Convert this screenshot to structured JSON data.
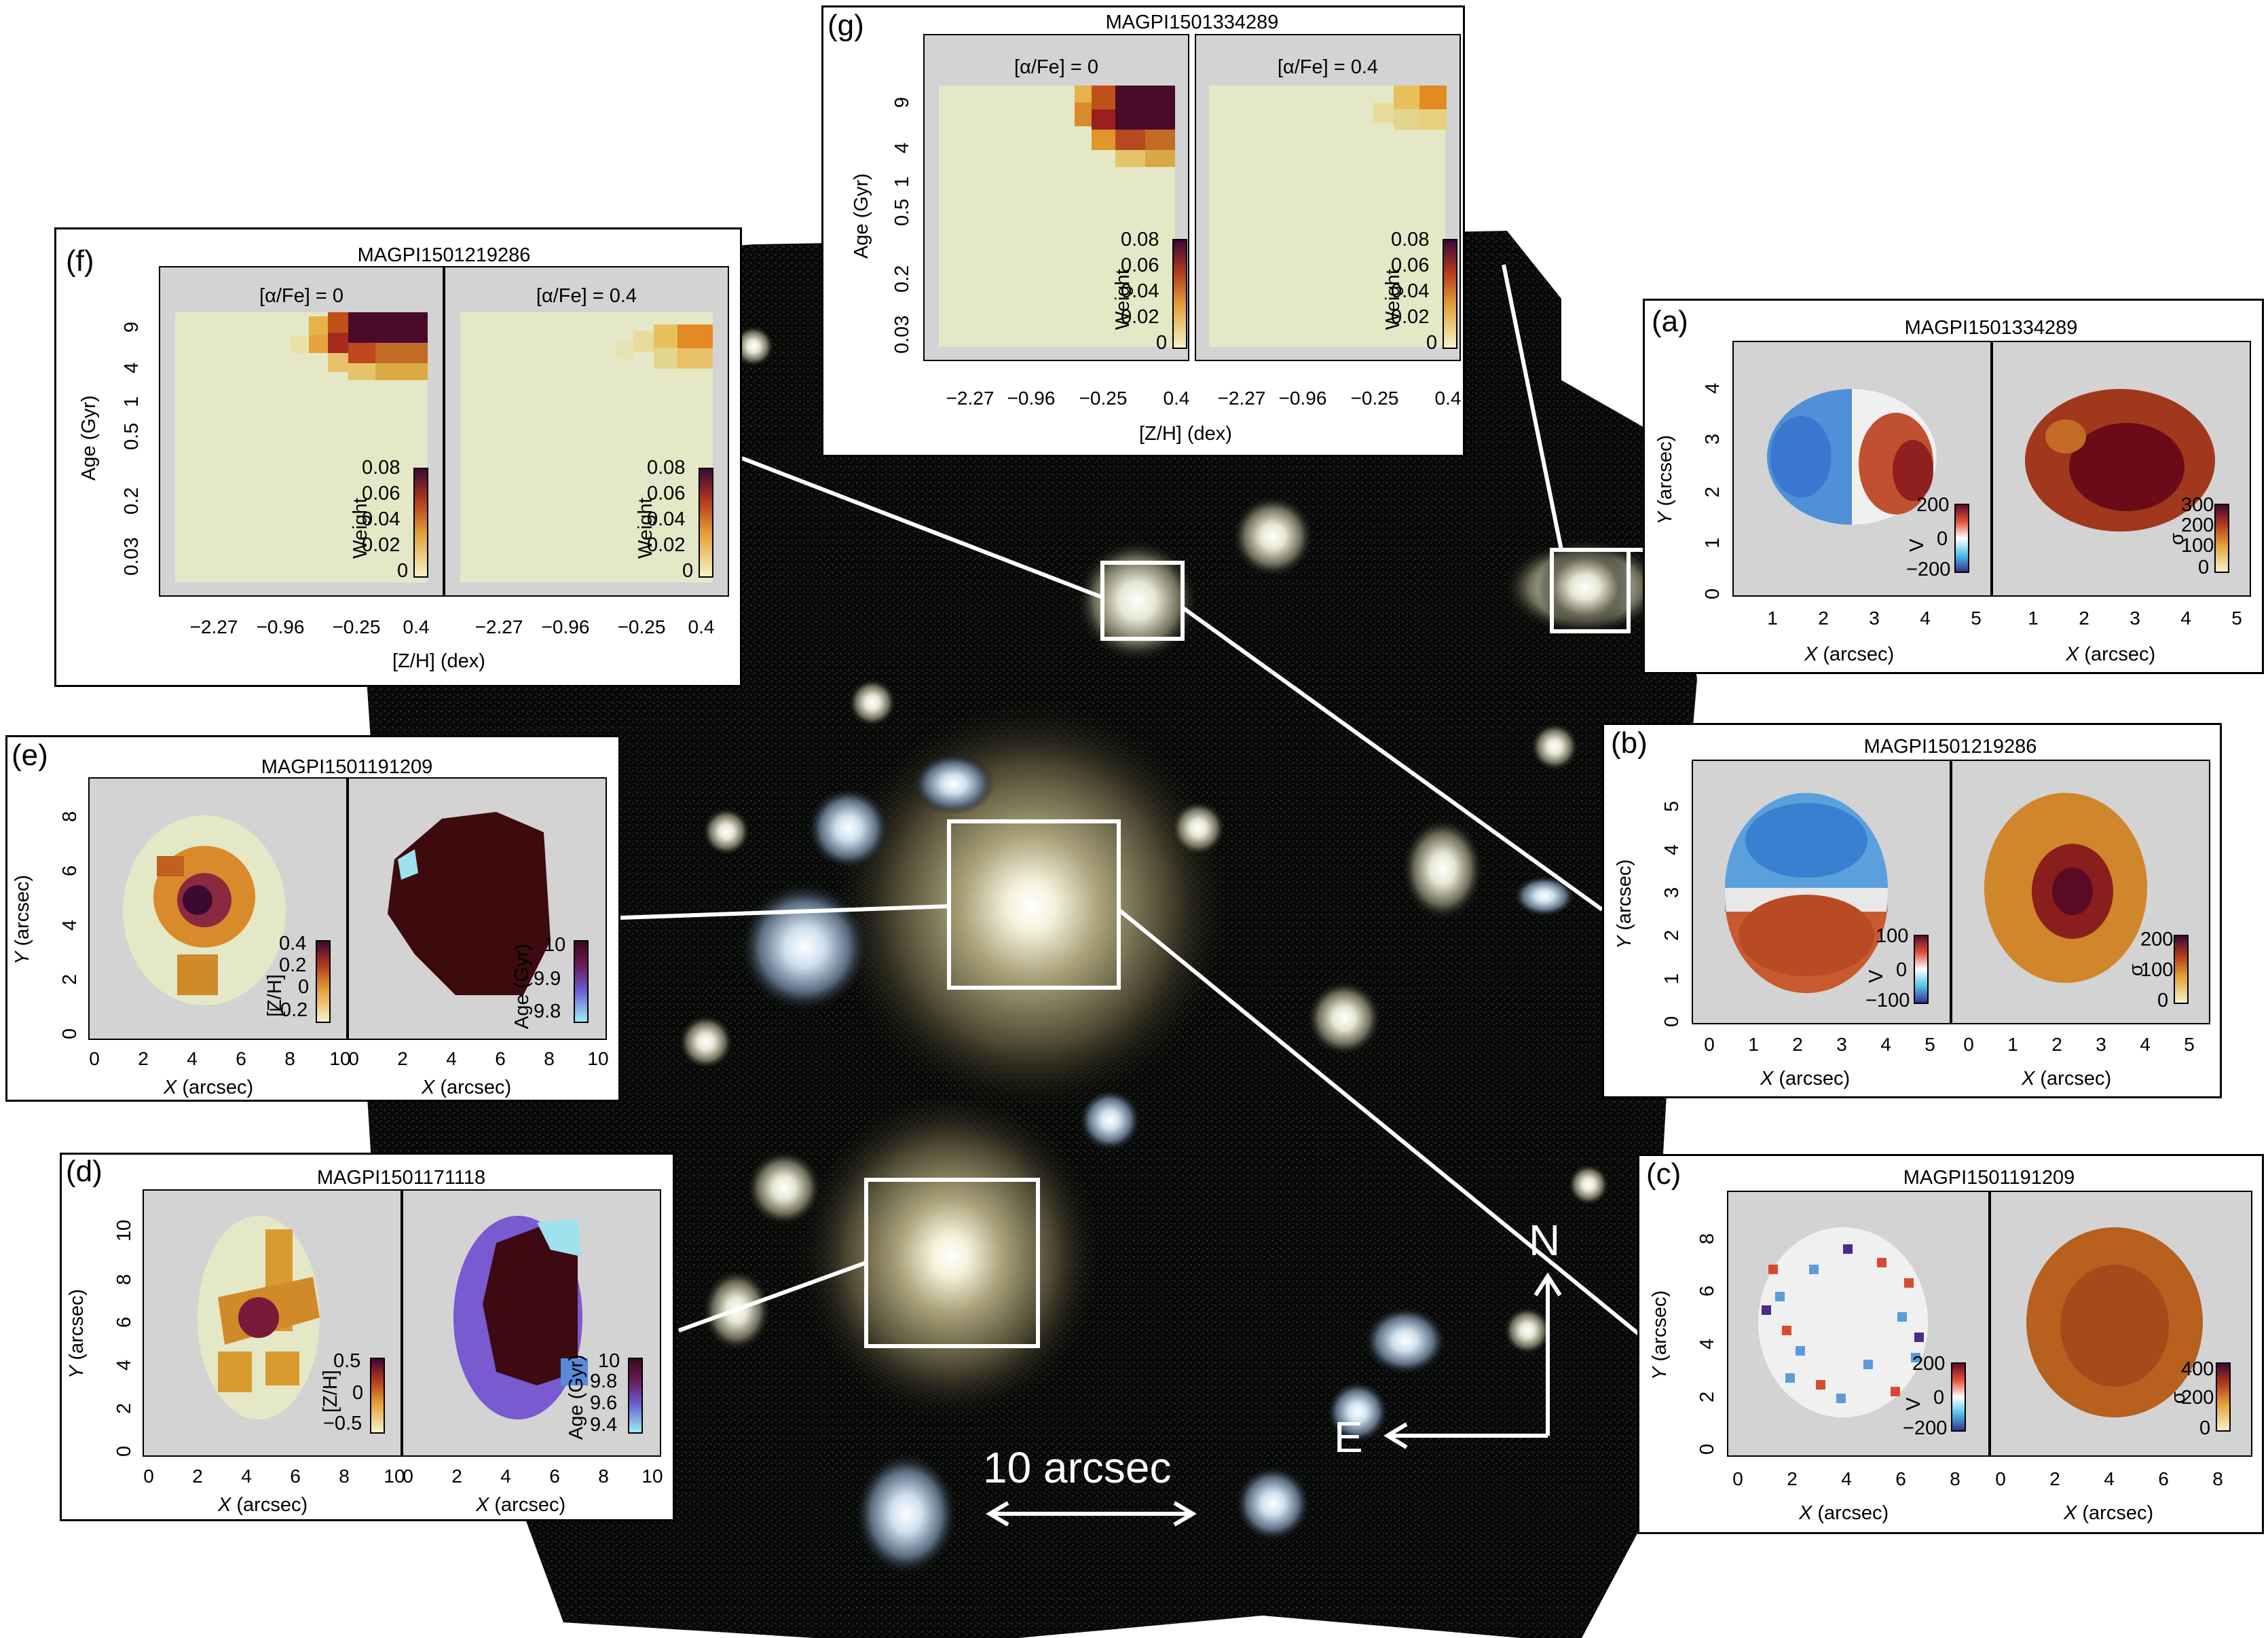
{
  "panels": {
    "a": {
      "letter": "(a)",
      "title": "MAGPI1501334289",
      "xlabel_var": "X",
      "xlabel_unit": " (arcsec)",
      "ylabel_var": "Y",
      "ylabel_unit": " (arcsec)",
      "xticks": [
        "1",
        "2",
        "3",
        "4",
        "5"
      ],
      "yticks": [
        "0",
        "1",
        "2",
        "3",
        "4"
      ],
      "cbar_left": {
        "label": "V",
        "ticks": [
          "200",
          "0",
          "−200"
        ]
      },
      "cbar_right": {
        "label": "σ",
        "ticks": [
          "300",
          "200",
          "100",
          "0"
        ]
      }
    },
    "b": {
      "letter": "(b)",
      "title": "MAGPI1501219286",
      "xlabel_var": "X",
      "xlabel_unit": " (arcsec)",
      "ylabel_var": "Y",
      "ylabel_unit": " (arcsec)",
      "xticks": [
        "0",
        "1",
        "2",
        "3",
        "4",
        "5"
      ],
      "yticks": [
        "0",
        "1",
        "2",
        "3",
        "4",
        "5"
      ],
      "cbar_left": {
        "label": "V",
        "ticks": [
          "100",
          "0",
          "−100"
        ]
      },
      "cbar_right": {
        "label": "σ",
        "ticks": [
          "200",
          "100",
          "0"
        ]
      }
    },
    "c": {
      "letter": "(c)",
      "title": "MAGPI1501191209",
      "xlabel_var": "X",
      "xlabel_unit": " (arcsec)",
      "ylabel_var": "Y",
      "ylabel_unit": " (arcsec)",
      "xticks": [
        "0",
        "2",
        "4",
        "6",
        "8"
      ],
      "yticks": [
        "0",
        "2",
        "4",
        "6",
        "8"
      ],
      "cbar_left": {
        "label": "V",
        "ticks": [
          "200",
          "0",
          "−200"
        ]
      },
      "cbar_right": {
        "label": "σ",
        "ticks": [
          "400",
          "200",
          "0"
        ]
      }
    },
    "d": {
      "letter": "(d)",
      "title": "MAGPI1501171118",
      "xlabel_var": "X",
      "xlabel_unit": " (arcsec)",
      "ylabel_var": "Y",
      "ylabel_unit": " (arcsec)",
      "xticks": [
        "0",
        "2",
        "4",
        "6",
        "8",
        "10"
      ],
      "yticks": [
        "0",
        "2",
        "4",
        "6",
        "8",
        "10"
      ],
      "cbar_left": {
        "label": "[Z/H]",
        "ticks": [
          "0.5",
          "0",
          "−0.5"
        ]
      },
      "cbar_right": {
        "label": "Age (Gyr)",
        "ticks": [
          "10",
          "9.8",
          "9.6",
          "9.4"
        ]
      }
    },
    "e": {
      "letter": "(e)",
      "title": "MAGPI1501191209",
      "xlabel_var": "X",
      "xlabel_unit": " (arcsec)",
      "ylabel_var": "Y",
      "ylabel_unit": " (arcsec)",
      "xticks": [
        "0",
        "2",
        "4",
        "6",
        "8",
        "10"
      ],
      "yticks": [
        "0",
        "2",
        "4",
        "6",
        "8"
      ],
      "cbar_left": {
        "label": "[Z/H]",
        "ticks": [
          "0.4",
          "0.2",
          "0",
          "−0.2"
        ]
      },
      "cbar_right": {
        "label": "Age (Gyr)",
        "ticks": [
          "10",
          "9.9",
          "9.8"
        ]
      }
    },
    "f": {
      "letter": "(f)",
      "title": "MAGPI1501219286",
      "sub_left": "[α/Fe] = 0",
      "sub_right": "[α/Fe] = 0.4",
      "xlabel": "[Z/H] (dex)",
      "ylabel": "Age (Gyr)",
      "xticks": [
        "−2.27",
        "−0.96",
        "−0.25",
        "0.4"
      ],
      "yticks": [
        "0.03",
        "0.2",
        "0.5",
        "1",
        "4",
        "9"
      ],
      "cbar": {
        "label": "Weight",
        "ticks": [
          "0.08",
          "0.06",
          "0.04",
          "0.02",
          "0"
        ]
      }
    },
    "g": {
      "letter": "(g)",
      "title": "MAGPI1501334289",
      "sub_left": "[α/Fe] = 0",
      "sub_right": "[α/Fe] = 0.4",
      "xlabel": "[Z/H] (dex)",
      "ylabel": "Age (Gyr)",
      "xticks": [
        "−2.27",
        "−0.96",
        "−0.25",
        "0.4"
      ],
      "yticks": [
        "0.03",
        "0.2",
        "0.5",
        "1",
        "4",
        "9"
      ],
      "cbar": {
        "label": "Weight",
        "ticks": [
          "0.08",
          "0.06",
          "0.04",
          "0.02",
          "0"
        ]
      }
    }
  },
  "sky": {
    "scale_label": "10 arcsec",
    "north_label": "N",
    "east_label": "E"
  },
  "colors": {
    "panel_bg": "#d3d3d3",
    "map_pale": "#e4e8c6",
    "dark_map": "#3d0a0e",
    "line": "#ffffff"
  }
}
